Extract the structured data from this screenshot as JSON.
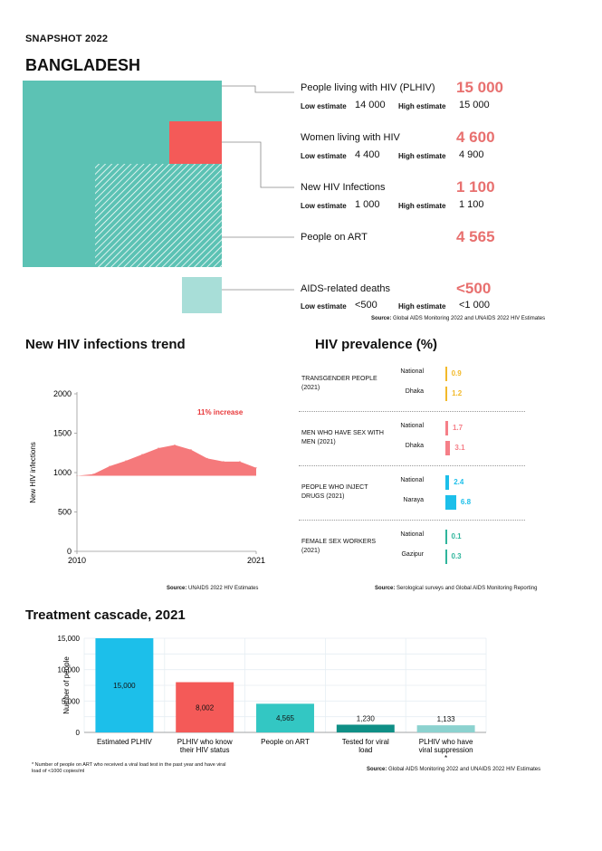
{
  "header": {
    "snapshot": "SNAPSHOT 2022",
    "country": "BANGLADESH"
  },
  "colors": {
    "teal": "#5cc2b4",
    "red": "#f45a58",
    "light_teal": "#a8ded8",
    "value": "#e8706f",
    "trend": "#f5797b",
    "yellow": "#f2b92a",
    "pink": "#f57f88",
    "cyan": "#1cbfea",
    "green": "#2fb59c"
  },
  "stats": [
    {
      "label": "People living with HIV (PLHIV)",
      "value": "15 000",
      "low_label": "Low estimate",
      "low": "14 000",
      "high_label": "High estimate",
      "high": "15 000"
    },
    {
      "label": "Women living with HIV",
      "value": "4 600",
      "low_label": "Low estimate",
      "low": "4 400",
      "high_label": "High estimate",
      "high": "4 900"
    },
    {
      "label": "New HIV Infections",
      "value": "1 100",
      "low_label": "Low estimate",
      "low": "1 000",
      "high_label": "High estimate",
      "high": "1 100"
    },
    {
      "label": "People on ART",
      "value": "4 565"
    },
    {
      "label": "AIDS-related deaths",
      "value": "<500",
      "low_label": "Low estimate",
      "low": "<500",
      "high_label": "High estimate",
      "high": "<1 000"
    }
  ],
  "stats_source": {
    "prefix": "Source:",
    "text": "Global AIDS Monitoring 2022 and UNAIDS 2022 HIV Estimates"
  },
  "trend": {
    "title": "New HIV infections trend",
    "annotation": "11% increase",
    "source_prefix": "Source:",
    "source": "UNAIDS 2022 HIV Estimates"
  },
  "prevalence": {
    "title": "HIV prevalence (%)",
    "source_prefix": "Source:",
    "source": "Serological surveys and Global AIDS Monitoring Reporting",
    "groups": [
      {
        "category": "TRANSGENDER PEOPLE (2021)",
        "rows": [
          {
            "loc": "National",
            "value": "0.9"
          },
          {
            "loc": "Dhaka",
            "value": "1.2"
          }
        ]
      },
      {
        "category": "MEN WHO HAVE SEX WITH MEN (2021)",
        "rows": [
          {
            "loc": "National",
            "value": "1.7"
          },
          {
            "loc": "Dhaka",
            "value": "3.1"
          }
        ]
      },
      {
        "category": "PEOPLE WHO INJECT DRUGS (2021)",
        "rows": [
          {
            "loc": "National",
            "value": "2.4"
          },
          {
            "loc": "Naraya",
            "value": "6.8"
          }
        ]
      },
      {
        "category": "FEMALE SEX WORKERS (2021)",
        "rows": [
          {
            "loc": "National",
            "value": "0.1"
          },
          {
            "loc": "Gazipur",
            "value": "0.3"
          }
        ]
      }
    ]
  },
  "cascade": {
    "title": "Treatment cascade, 2021",
    "footnote": "* Number of people on ART who received a viral load test in the past year and have viral load of <1000 copies/ml",
    "source_prefix": "Source:",
    "source": "Global AIDS Monitoring 2022 and UNAIDS 2022 HIV Estimates"
  },
  "chart_data": [
    {
      "type": "area",
      "title": "New HIV infections trend",
      "ylabel": "New HIV infections",
      "xlabel": "",
      "x": [
        2010,
        2011,
        2012,
        2013,
        2014,
        2015,
        2016,
        2017,
        2018,
        2019,
        2020,
        2021
      ],
      "values": [
        960,
        980,
        1080,
        1150,
        1230,
        1310,
        1350,
        1290,
        1180,
        1140,
        1140,
        1060
      ],
      "xticks": [
        "2010",
        "2021"
      ],
      "yticks": [
        "0",
        "500",
        "1000",
        "1500",
        "2000"
      ],
      "ylim": [
        0,
        2000
      ],
      "grid": false
    },
    {
      "type": "bar",
      "title": "HIV prevalence (%)",
      "orientation": "horizontal",
      "categories": [
        "Transgender people National",
        "Transgender people Dhaka",
        "MSM National",
        "MSM Dhaka",
        "PWID National",
        "PWID Naraya",
        "FSW National",
        "FSW Gazipur"
      ],
      "values": [
        0.9,
        1.2,
        1.7,
        3.1,
        2.4,
        6.8,
        0.1,
        0.3
      ]
    },
    {
      "type": "bar",
      "title": "Treatment cascade, 2021",
      "ylabel": "Number of people",
      "categories": [
        "Estimated PLHIV",
        "PLHIV who know their HIV status",
        "People on ART",
        "Tested for viral load",
        "PLHIV who have viral suppression *"
      ],
      "values": [
        15000,
        8002,
        4565,
        1230,
        1133
      ],
      "labels": [
        "15,000",
        "8,002",
        "4,565",
        "1,230",
        "1,133"
      ],
      "yticks": [
        "0",
        "5,000",
        "10,000",
        "15,000"
      ],
      "ylim": [
        0,
        15000
      ],
      "grid": true
    }
  ]
}
